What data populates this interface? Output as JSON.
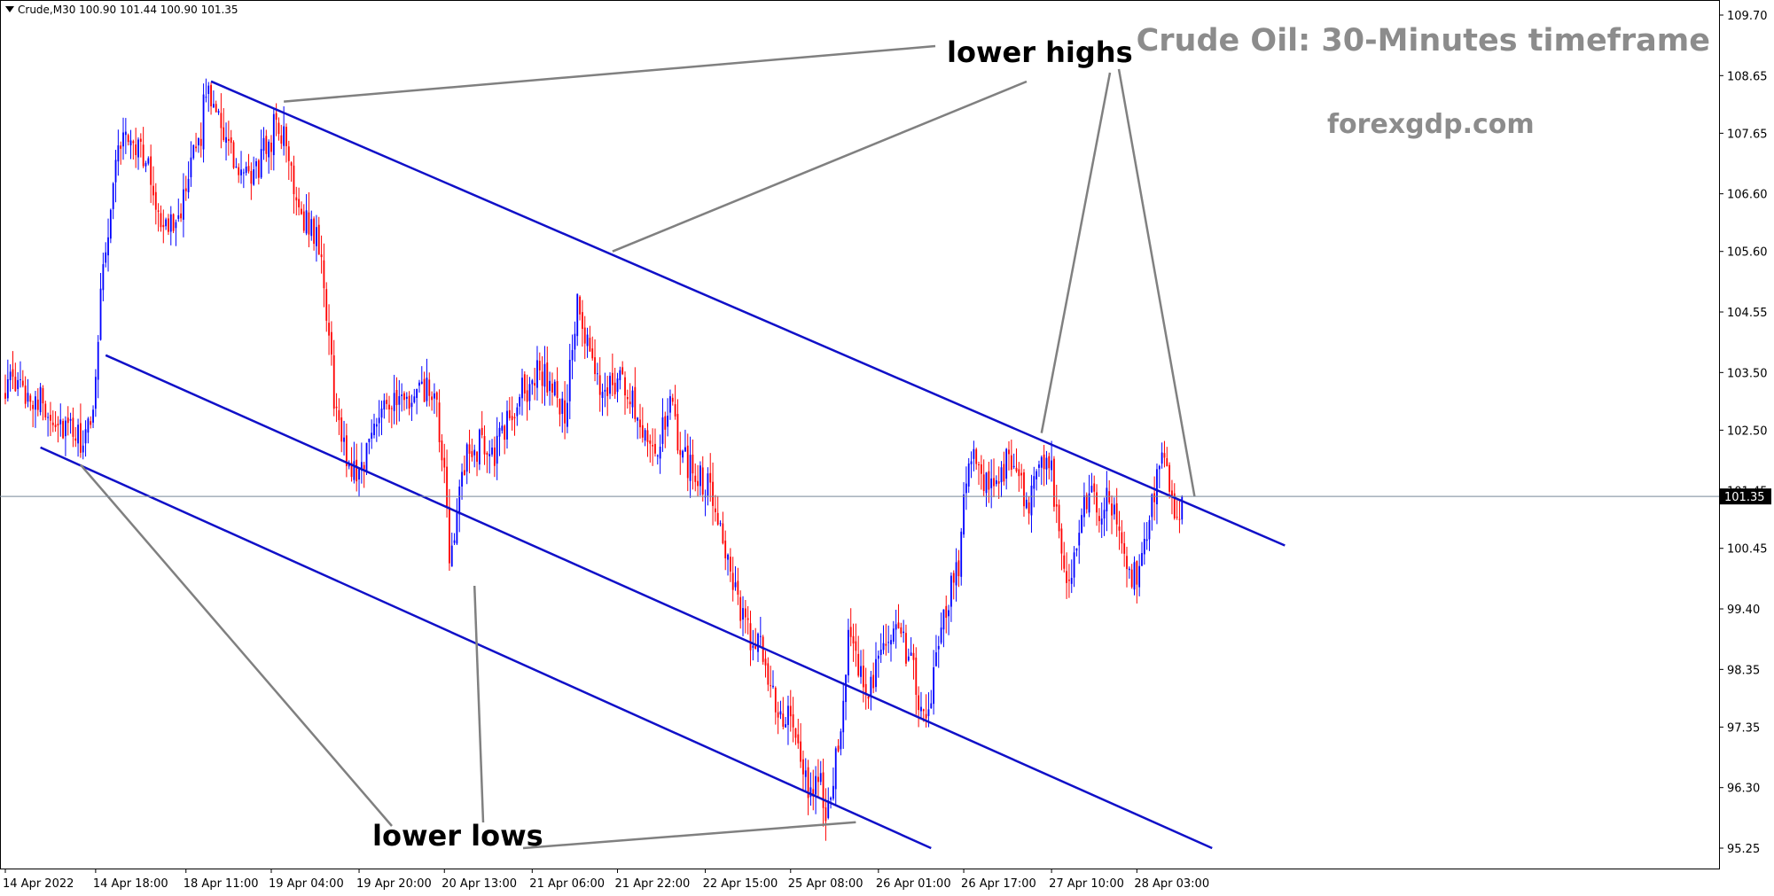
{
  "header": {
    "symbol_line": "Crude,M30  100.90 101.44 100.90 101.35"
  },
  "title": "Crude Oil: 30-Minutes timeframe",
  "watermark": "forexgdp.com",
  "annotations": {
    "lower_highs": "lower highs",
    "lower_lows": "lower lows"
  },
  "colors": {
    "bull": "#0000ff",
    "bear": "#ff0000",
    "channel": "#1010c8",
    "pointer": "#808080",
    "price_line": "#778899"
  },
  "chart_data": {
    "type": "candlestick",
    "symbol": "Crude",
    "timeframe": "M30",
    "last_price": "101.35",
    "ylim": [
      94.7,
      110.0
    ],
    "y_ticks": [
      "109.70",
      "108.65",
      "107.65",
      "106.60",
      "105.60",
      "104.55",
      "103.50",
      "102.50",
      "101.45",
      "100.45",
      "99.40",
      "98.35",
      "97.35",
      "96.30",
      "95.25"
    ],
    "x_ticks": [
      "14 Apr 2022",
      "14 Apr 18:00",
      "18 Apr 11:00",
      "19 Apr 04:00",
      "19 Apr 20:00",
      "20 Apr 13:00",
      "21 Apr 06:00",
      "21 Apr 22:00",
      "22 Apr 15:00",
      "25 Apr 08:00",
      "26 Apr 01:00",
      "26 Apr 17:00",
      "27 Apr 10:00",
      "28 Apr 03:00"
    ],
    "x_tick_index": [
      0,
      36,
      72,
      106,
      141,
      175,
      210,
      244,
      279,
      313,
      348,
      382,
      417,
      451
    ],
    "close_path": [
      [
        0,
        103.3
      ],
      [
        12,
        103.1
      ],
      [
        22,
        102.6
      ],
      [
        30,
        102.3
      ],
      [
        34,
        102.5
      ],
      [
        36,
        103.5
      ],
      [
        38,
        105.0
      ],
      [
        41,
        106.0
      ],
      [
        45,
        107.5
      ],
      [
        50,
        107.6
      ],
      [
        55,
        107.3
      ],
      [
        60,
        106.5
      ],
      [
        64,
        105.9
      ],
      [
        68,
        106.3
      ],
      [
        72,
        106.5
      ],
      [
        75,
        107.2
      ],
      [
        78,
        107.7
      ],
      [
        80,
        108.4
      ],
      [
        84,
        108.2
      ],
      [
        87,
        107.7
      ],
      [
        91,
        107.1
      ],
      [
        96,
        106.8
      ],
      [
        100,
        107.0
      ],
      [
        103,
        107.3
      ],
      [
        106,
        107.6
      ],
      [
        108,
        107.9
      ],
      [
        112,
        107.4
      ],
      [
        116,
        106.6
      ],
      [
        120,
        106.1
      ],
      [
        124,
        105.9
      ],
      [
        128,
        104.6
      ],
      [
        131,
        103.1
      ],
      [
        134,
        102.3
      ],
      [
        137,
        101.9
      ],
      [
        141,
        101.8
      ],
      [
        146,
        102.4
      ],
      [
        150,
        103.1
      ],
      [
        156,
        102.9
      ],
      [
        162,
        103.0
      ],
      [
        168,
        103.2
      ],
      [
        172,
        102.8
      ],
      [
        175,
        101.6
      ],
      [
        177,
        100.3
      ],
      [
        180,
        101.1
      ],
      [
        184,
        102.0
      ],
      [
        190,
        102.3
      ],
      [
        195,
        102.1
      ],
      [
        200,
        102.6
      ],
      [
        205,
        103.1
      ],
      [
        210,
        103.3
      ],
      [
        213,
        103.6
      ],
      [
        218,
        103.2
      ],
      [
        223,
        102.8
      ],
      [
        228,
        104.6
      ],
      [
        232,
        103.9
      ],
      [
        237,
        103.2
      ],
      [
        244,
        103.4
      ],
      [
        250,
        103.0
      ],
      [
        255,
        102.5
      ],
      [
        260,
        102.2
      ],
      [
        265,
        102.9
      ],
      [
        270,
        102.0
      ],
      [
        275,
        101.8
      ],
      [
        279,
        101.6
      ],
      [
        283,
        101.3
      ],
      [
        287,
        100.5
      ],
      [
        292,
        99.4
      ],
      [
        297,
        98.9
      ],
      [
        302,
        98.6
      ],
      [
        307,
        97.8
      ],
      [
        311,
        97.3
      ],
      [
        313,
        97.6
      ],
      [
        316,
        97.0
      ],
      [
        320,
        96.1
      ],
      [
        324,
        96.5
      ],
      [
        327,
        95.9
      ],
      [
        330,
        96.6
      ],
      [
        333,
        97.5
      ],
      [
        336,
        98.8
      ],
      [
        340,
        98.3
      ],
      [
        344,
        98.1
      ],
      [
        348,
        98.4
      ],
      [
        353,
        99.0
      ],
      [
        358,
        98.8
      ],
      [
        362,
        98.3
      ],
      [
        365,
        97.5
      ],
      [
        368,
        97.6
      ],
      [
        372,
        98.7
      ],
      [
        376,
        99.6
      ],
      [
        380,
        100.2
      ],
      [
        382,
        101.3
      ],
      [
        385,
        102.2
      ],
      [
        390,
        101.6
      ],
      [
        395,
        101.4
      ],
      [
        400,
        102.2
      ],
      [
        404,
        101.5
      ],
      [
        408,
        101.3
      ],
      [
        412,
        102.0
      ],
      [
        417,
        101.8
      ],
      [
        420,
        100.7
      ],
      [
        424,
        99.9
      ],
      [
        428,
        100.7
      ],
      [
        432,
        101.6
      ],
      [
        436,
        101.1
      ],
      [
        440,
        101.3
      ],
      [
        444,
        100.7
      ],
      [
        448,
        100.1
      ],
      [
        451,
        99.9
      ],
      [
        455,
        100.6
      ],
      [
        458,
        101.4
      ],
      [
        461,
        102.3
      ],
      [
        464,
        101.5
      ],
      [
        467,
        100.8
      ],
      [
        469,
        101.35
      ]
    ],
    "channel_lines": [
      {
        "p1": [
          82,
          108.55
        ],
        "p2": [
          510,
          100.5
        ]
      },
      {
        "p1": [
          40,
          103.8
        ],
        "p2": [
          481,
          95.25
        ]
      },
      {
        "p1": [
          14,
          102.2
        ],
        "p2": [
          369,
          95.25
        ]
      }
    ]
  }
}
